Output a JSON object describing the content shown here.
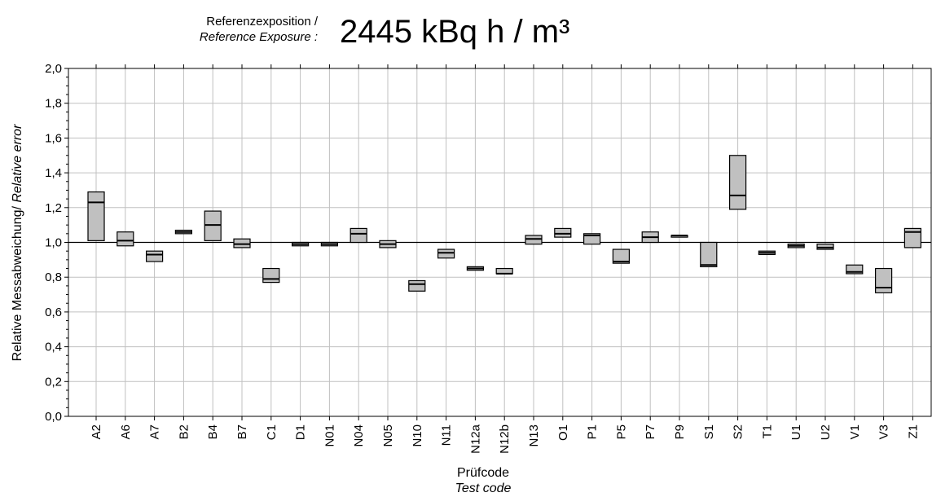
{
  "header": {
    "label_de": "Referenzexposition /",
    "label_en": "Reference Exposure :",
    "value": "2445 kBq h / m³"
  },
  "chart_data": {
    "type": "box",
    "xlabel_de": "Prüfcode",
    "xlabel_en": "Test code",
    "ylabel_de": "Relative Messabweichung/ ",
    "ylabel_en": "Relative error",
    "ylim": [
      0,
      2.0
    ],
    "yticks": [
      "0,0",
      "0,2",
      "0,4",
      "0,6",
      "0,8",
      "1,0",
      "1,2",
      "1,4",
      "1,6",
      "1,8",
      "2,0"
    ],
    "reference_line": 1.0,
    "grid": true,
    "categories": [
      "A2",
      "A6",
      "A7",
      "B2",
      "B4",
      "B7",
      "C1",
      "D1",
      "N01",
      "N04",
      "N05",
      "N10",
      "N11",
      "N12a",
      "N12b",
      "N13",
      "O1",
      "P1",
      "P5",
      "P7",
      "P9",
      "S1",
      "S2",
      "T1",
      "U1",
      "U2",
      "V1",
      "V3",
      "Z1"
    ],
    "series": [
      {
        "low": [
          1.01,
          0.98,
          0.89,
          1.05,
          1.01,
          0.97,
          0.77,
          0.98,
          0.98,
          1.0,
          0.97,
          0.72,
          0.91,
          0.84,
          0.82,
          0.99,
          1.03,
          0.99,
          0.88,
          1.0,
          1.03,
          0.86,
          1.19,
          0.93,
          0.97,
          0.96,
          0.82,
          0.71,
          0.97
        ],
        "median": [
          1.23,
          1.01,
          0.93,
          1.06,
          1.1,
          0.99,
          0.79,
          0.99,
          0.99,
          1.05,
          0.99,
          0.76,
          0.94,
          0.85,
          0.82,
          1.02,
          1.05,
          1.04,
          0.89,
          1.03,
          1.04,
          0.87,
          1.27,
          0.94,
          0.98,
          0.97,
          0.83,
          0.74,
          1.06
        ],
        "high": [
          1.29,
          1.06,
          0.95,
          1.07,
          1.18,
          1.02,
          0.85,
          1.0,
          1.0,
          1.08,
          1.01,
          0.78,
          0.96,
          0.86,
          0.85,
          1.04,
          1.08,
          1.05,
          0.96,
          1.06,
          1.04,
          1.0,
          1.5,
          0.95,
          0.99,
          0.99,
          0.87,
          0.85,
          1.08
        ]
      }
    ]
  }
}
